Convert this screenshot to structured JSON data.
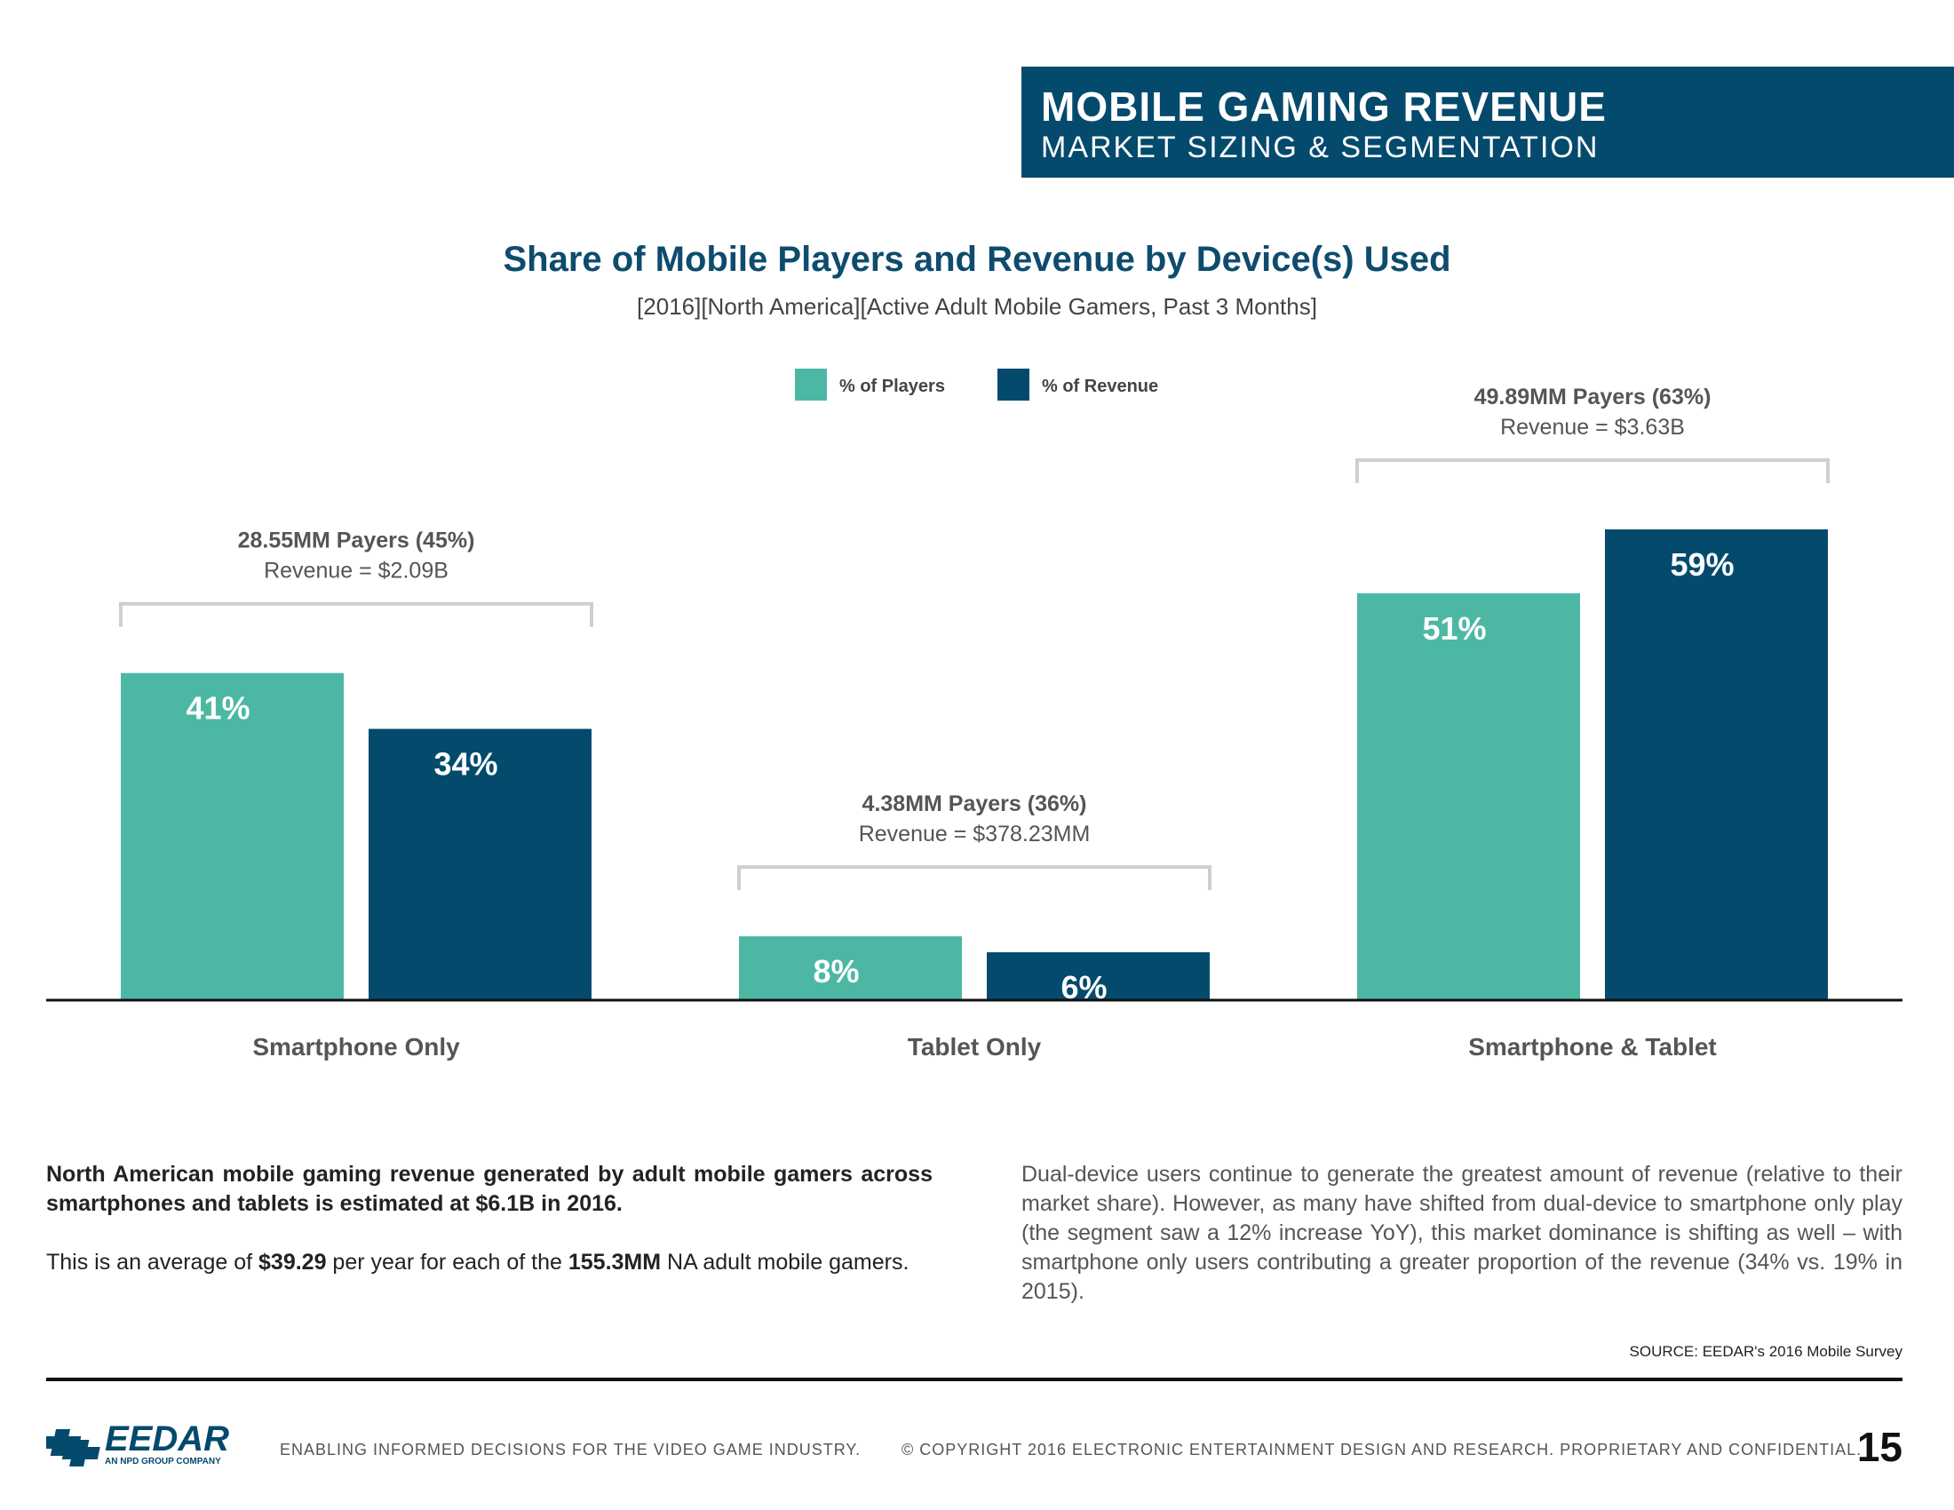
{
  "header": {
    "title": "MOBILE GAMING REVENUE",
    "subtitle": "MARKET SIZING & SEGMENTATION"
  },
  "colors": {
    "players": "#4cb8a4",
    "revenue": "#044a6d",
    "header_bg": "#044a6d",
    "bracket": "#cfcfcf"
  },
  "chart_data": {
    "type": "bar",
    "title": "Share of Mobile Players and Revenue by Device(s) Used",
    "subtitle": "[2016][North America][Active Adult Mobile Gamers, Past 3 Months]",
    "categories": [
      "Smartphone Only",
      "Tablet Only",
      "Smartphone & Tablet"
    ],
    "series": [
      {
        "name": "% of Players",
        "values": [
          41,
          8,
          51
        ],
        "labels": [
          "41%",
          "8%",
          "51%"
        ]
      },
      {
        "name": "% of Revenue",
        "values": [
          34,
          6,
          59
        ],
        "labels": [
          "34%",
          "6%",
          "59%"
        ]
      }
    ],
    "annotations": [
      {
        "payers": "28.55MM Payers (45%)",
        "revenue": "Revenue = $2.09B"
      },
      {
        "payers": "4.38MM Payers (36%)",
        "revenue": "Revenue = $378.23MM"
      },
      {
        "payers": "49.89MM Payers (63%)",
        "revenue": "Revenue = $3.63B"
      }
    ],
    "legend_position": "top-center",
    "ylim": [
      0,
      59
    ]
  },
  "body": {
    "left_p1": "North American mobile gaming revenue generated by adult mobile gamers across smartphones and tablets is estimated at $6.1B in 2016.",
    "left_p2_a": "This is an average of ",
    "left_p2_b": "$39.29",
    "left_p2_c": " per year for each of the ",
    "left_p2_d": "155.3MM",
    "left_p2_e": " NA adult mobile gamers.",
    "right": "Dual-device users continue to generate the greatest amount of revenue (relative to their market share). However, as many have shifted from dual-device to smartphone only play (the segment saw a 12% increase YoY), this market dominance is shifting as well – with smartphone only users contributing a greater proportion of the revenue (34% vs. 19% in 2015).",
    "source": "SOURCE: EEDAR's 2016 Mobile Survey"
  },
  "footer": {
    "logo_text": "EEDAR",
    "logo_sub": "AN NPD GROUP COMPANY",
    "tagline": "ENABLING INFORMED DECISIONS FOR THE  VIDEO GAME INDUSTRY.",
    "copyright": "© COPYRIGHT 2016 ELECTRONIC ENTERTAINMENT DESIGN AND RESEARCH. PROPRIETARY AND CONFIDENTIAL.",
    "page_number": "15"
  }
}
